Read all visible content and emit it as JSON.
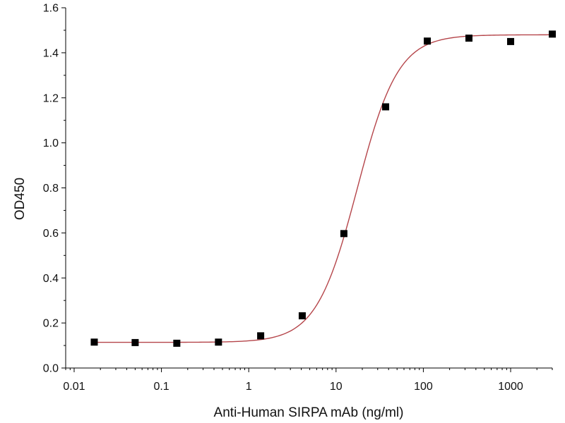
{
  "chart_data": {
    "type": "scatter",
    "title": "",
    "xlabel": "Anti-Human SIRPA mAb (ng/ml)",
    "ylabel": "OD450",
    "x_scale": "log",
    "xlim": [
      0.008,
      3000
    ],
    "ylim": [
      0,
      1.6
    ],
    "grid": false,
    "legend": "none",
    "x_ticks": [
      {
        "value": 0.01,
        "label": "0.01"
      },
      {
        "value": 0.1,
        "label": "0.1"
      },
      {
        "value": 1,
        "label": "1"
      },
      {
        "value": 10,
        "label": "10"
      },
      {
        "value": 100,
        "label": "100"
      },
      {
        "value": 1000,
        "label": "1000"
      }
    ],
    "y_ticks": [
      {
        "value": 0.0,
        "label": "0.0"
      },
      {
        "value": 0.2,
        "label": "0.2"
      },
      {
        "value": 0.4,
        "label": "0.4"
      },
      {
        "value": 0.6,
        "label": "0.6"
      },
      {
        "value": 0.8,
        "label": "0.8"
      },
      {
        "value": 1.0,
        "label": "1.0"
      },
      {
        "value": 1.2,
        "label": "1.2"
      },
      {
        "value": 1.4,
        "label": "1.4"
      },
      {
        "value": 1.6,
        "label": "1.6"
      }
    ],
    "series": [
      {
        "marker": "square",
        "color": "#000000",
        "x": [
          0.017,
          0.05,
          0.15,
          0.45,
          1.37,
          4.1,
          12.3,
          37,
          111,
          333,
          1000,
          3000
        ],
        "y": [
          0.115,
          0.113,
          0.11,
          0.115,
          0.143,
          0.232,
          0.597,
          1.16,
          1.452,
          1.465,
          1.45,
          1.483
        ]
      }
    ],
    "fit": {
      "color": "#b5454a",
      "bottom": 0.114,
      "top": 1.48,
      "ec50": 17.5,
      "hill": 1.85
    }
  }
}
